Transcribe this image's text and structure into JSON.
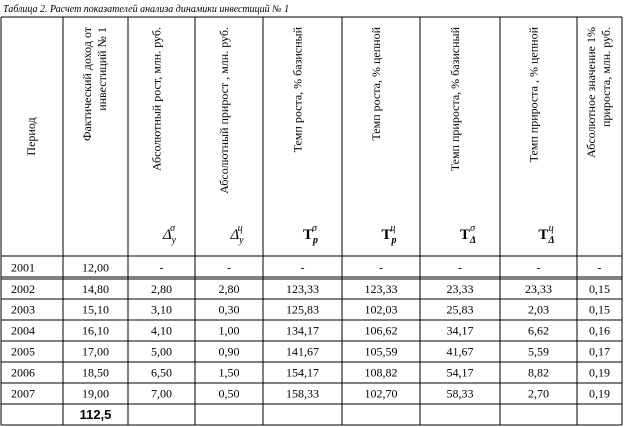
{
  "caption": "Таблица 2. Расчет показателей анализа динамики инвестиций № 1",
  "table": {
    "columns": [
      {
        "lines": [
          "Период"
        ]
      },
      {
        "lines": [
          "Фактический доход от",
          "инвестиций № 1"
        ]
      },
      {
        "lines": [
          "Абсолютный рост, млн. руб."
        ],
        "symbol": {
          "base": "Δ",
          "sub": "y",
          "sup": "σ"
        }
      },
      {
        "lines": [
          "Абсолютный прирост , млн. руб."
        ],
        "symbol": {
          "base": "Δ",
          "sub": "y",
          "sup": "ц"
        }
      },
      {
        "lines": [
          "Темп роста, % базисный"
        ],
        "symbol": {
          "base": "T",
          "sub": "p",
          "sup": "σ"
        }
      },
      {
        "lines": [
          "Темп роста, % цепной"
        ],
        "symbol": {
          "base": "T",
          "sub": "p",
          "sup": "ц"
        }
      },
      {
        "lines": [
          "Темп прироста, % базисный"
        ],
        "symbol": {
          "base": "T",
          "sub": "Δ",
          "sup": "σ"
        }
      },
      {
        "lines": [
          "Темп прироста , % цепной"
        ],
        "symbol": {
          "base": "T",
          "sub": "Δ",
          "sup": "ц"
        }
      },
      {
        "lines": [
          "Абсолютное значение 1%",
          "прироста, млн. руб."
        ]
      }
    ],
    "rows": [
      [
        "2001",
        "12,00",
        "-",
        "-",
        "-",
        "-",
        "-",
        "-",
        "-"
      ],
      [
        "2002",
        "14,80",
        "2,80",
        "2,80",
        "123,33",
        "123,33",
        "23,33",
        "23,33",
        "0,15"
      ],
      [
        "2003",
        "15,10",
        "3,10",
        "0,30",
        "125,83",
        "102,03",
        "25,83",
        "2,03",
        "0,15"
      ],
      [
        "2004",
        "16,10",
        "4,10",
        "1,00",
        "134,17",
        "106,62",
        "34,17",
        "6,62",
        "0,16"
      ],
      [
        "2005",
        "17,00",
        "5,00",
        "0,90",
        "141,67",
        "105,59",
        "41,67",
        "5,59",
        "0,17"
      ],
      [
        "2006",
        "18,50",
        "6,50",
        "1,50",
        "154,17",
        "108,82",
        "54,17",
        "8,82",
        "0,19"
      ],
      [
        "2007",
        "19,00",
        "7,00",
        "0,50",
        "158,33",
        "102,70",
        "58,33",
        "2,70",
        "0,19"
      ]
    ],
    "total": "112,5"
  }
}
